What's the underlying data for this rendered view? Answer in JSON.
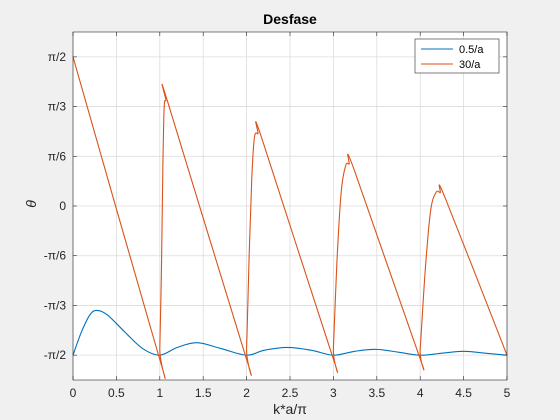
{
  "chart_data": {
    "type": "line",
    "title": "Desfase",
    "xlabel": "k*a/π",
    "ylabel": "θ",
    "xlim": [
      0,
      5
    ],
    "ylim": [
      -1.8326,
      1.8326
    ],
    "grid": true,
    "legend_position": "top-right",
    "xticks": [
      0,
      0.5,
      1,
      1.5,
      2,
      2.5,
      3,
      3.5,
      4,
      4.5,
      5
    ],
    "xtick_labels": [
      "0",
      "0.5",
      "1",
      "1.5",
      "2",
      "2.5",
      "3",
      "3.5",
      "4",
      "4.5",
      "5"
    ],
    "yticks": [
      -1.5708,
      -1.0472,
      -0.5236,
      0,
      0.5236,
      1.0472,
      1.5708
    ],
    "ytick_labels": [
      "-π/2",
      "-π/3",
      "-π/6",
      "0",
      "π/6",
      "π/3",
      "π/2"
    ],
    "series": [
      {
        "name": "0.5/a",
        "color": "#0072bd",
        "points": [
          [
            0,
            -1.571
          ],
          [
            0.1,
            -1.32
          ],
          [
            0.2,
            -1.14
          ],
          [
            0.28,
            -1.1
          ],
          [
            0.4,
            -1.15
          ],
          [
            0.6,
            -1.33
          ],
          [
            0.8,
            -1.5
          ],
          [
            1.0,
            -1.571
          ],
          [
            1.2,
            -1.49
          ],
          [
            1.43,
            -1.44
          ],
          [
            1.7,
            -1.5
          ],
          [
            2.0,
            -1.571
          ],
          [
            2.2,
            -1.52
          ],
          [
            2.47,
            -1.49
          ],
          [
            2.75,
            -1.52
          ],
          [
            3.0,
            -1.571
          ],
          [
            3.25,
            -1.53
          ],
          [
            3.5,
            -1.51
          ],
          [
            3.75,
            -1.54
          ],
          [
            4.0,
            -1.571
          ],
          [
            4.25,
            -1.55
          ],
          [
            4.5,
            -1.53
          ],
          [
            4.75,
            -1.55
          ],
          [
            5.0,
            -1.571
          ]
        ]
      },
      {
        "name": "30/a",
        "color": "#d95319",
        "points": [
          [
            0,
            1.571
          ],
          [
            0.985,
            -1.571
          ],
          [
            1.0,
            -1.5
          ],
          [
            1.02,
            -0.6
          ],
          [
            1.035,
            0.4
          ],
          [
            1.05,
            1.03
          ],
          [
            1.07,
            1.11
          ],
          [
            1.1,
            1.07
          ],
          [
            1.985,
            -1.571
          ],
          [
            2.0,
            -1.5
          ],
          [
            2.03,
            -0.5
          ],
          [
            2.06,
            0.3
          ],
          [
            2.09,
            0.72
          ],
          [
            2.13,
            0.76
          ],
          [
            2.18,
            0.7
          ],
          [
            2.985,
            -1.571
          ],
          [
            3.0,
            -1.5
          ],
          [
            3.04,
            -0.6
          ],
          [
            3.09,
            0.15
          ],
          [
            3.14,
            0.42
          ],
          [
            3.18,
            0.44
          ],
          [
            3.24,
            0.38
          ],
          [
            3.985,
            -1.571
          ],
          [
            4.0,
            -1.5
          ],
          [
            4.06,
            -0.65
          ],
          [
            4.12,
            -0.05
          ],
          [
            4.18,
            0.14
          ],
          [
            4.23,
            0.14
          ],
          [
            4.29,
            0.08
          ],
          [
            5.0,
            -1.571
          ]
        ]
      }
    ]
  }
}
